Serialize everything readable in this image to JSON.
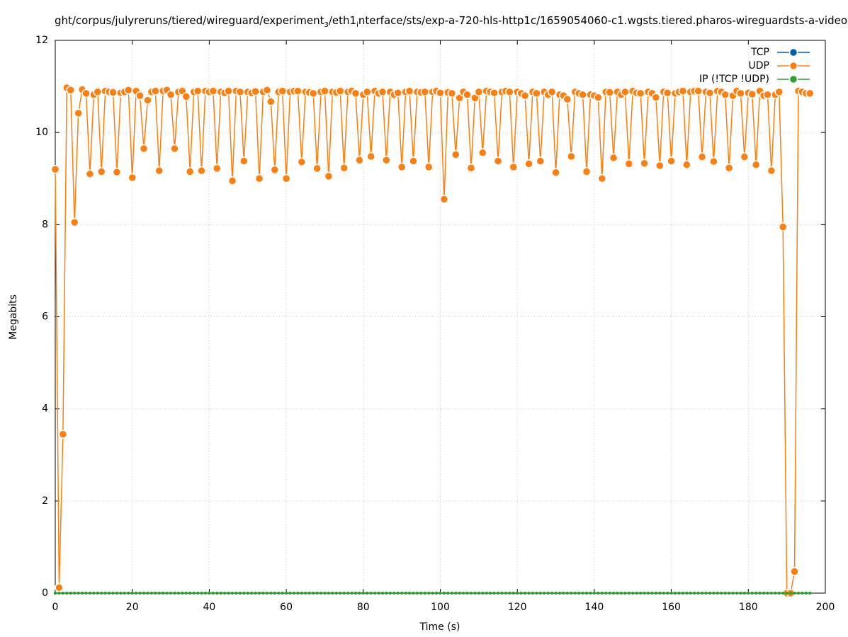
{
  "chart_data": {
    "type": "line",
    "title": [
      "ght/corpus/julyreruns/tiered/wireguard/experiment",
      "3",
      "/eth1",
      "i",
      "nterface/sts/exp-a-720-hls-http1c/1659054060-c1.wgsts.tiered.pharos-wireguardsts-a-video"
    ],
    "xlabel": "Time (s)",
    "ylabel": "Megabits",
    "xlim": [
      0,
      200
    ],
    "xticks": [
      0,
      20,
      40,
      60,
      80,
      100,
      120,
      140,
      160,
      180,
      200
    ],
    "ylim": [
      0,
      12
    ],
    "yticks": [
      0,
      2,
      4,
      6,
      8,
      10,
      12
    ],
    "grid": true,
    "legend": "top-right",
    "x": [
      0,
      1,
      2,
      3,
      4,
      5,
      6,
      7,
      8,
      9,
      10,
      11,
      12,
      13,
      14,
      15,
      16,
      17,
      18,
      19,
      20,
      21,
      22,
      23,
      24,
      25,
      26,
      27,
      28,
      29,
      30,
      31,
      32,
      33,
      34,
      35,
      36,
      37,
      38,
      39,
      40,
      41,
      42,
      43,
      44,
      45,
      46,
      47,
      48,
      49,
      50,
      51,
      52,
      53,
      54,
      55,
      56,
      57,
      58,
      59,
      60,
      61,
      62,
      63,
      64,
      65,
      66,
      67,
      68,
      69,
      70,
      71,
      72,
      73,
      74,
      75,
      76,
      77,
      78,
      79,
      80,
      81,
      82,
      83,
      84,
      85,
      86,
      87,
      88,
      89,
      90,
      91,
      92,
      93,
      94,
      95,
      96,
      97,
      98,
      99,
      100,
      101,
      102,
      103,
      104,
      105,
      106,
      107,
      108,
      109,
      110,
      111,
      112,
      113,
      114,
      115,
      116,
      117,
      118,
      119,
      120,
      121,
      122,
      123,
      124,
      125,
      126,
      127,
      128,
      129,
      130,
      131,
      132,
      133,
      134,
      135,
      136,
      137,
      138,
      139,
      140,
      141,
      142,
      143,
      144,
      145,
      146,
      147,
      148,
      149,
      150,
      151,
      152,
      153,
      154,
      155,
      156,
      157,
      158,
      159,
      160,
      161,
      162,
      163,
      164,
      165,
      166,
      167,
      168,
      169,
      170,
      171,
      172,
      173,
      174,
      175,
      176,
      177,
      178,
      179,
      180,
      181,
      182,
      183,
      184,
      185,
      186,
      187,
      188,
      189,
      190,
      191,
      192,
      193,
      194,
      195,
      196
    ],
    "series": [
      {
        "name": "TCP",
        "color": "#0060ad",
        "values": [
          0,
          0,
          0,
          0,
          0,
          0,
          0,
          0,
          0,
          0,
          0,
          0,
          0,
          0,
          0,
          0,
          0,
          0,
          0,
          0,
          0,
          0,
          0,
          0,
          0,
          0,
          0,
          0,
          0,
          0,
          0,
          0,
          0,
          0,
          0,
          0,
          0,
          0,
          0,
          0,
          0,
          0,
          0,
          0,
          0,
          0,
          0,
          0,
          0,
          0,
          0,
          0,
          0,
          0,
          0,
          0,
          0,
          0,
          0,
          0,
          0,
          0,
          0,
          0,
          0,
          0,
          0,
          0,
          0,
          0,
          0,
          0,
          0,
          0,
          0,
          0,
          0,
          0,
          0,
          0,
          0,
          0,
          0,
          0,
          0,
          0,
          0,
          0,
          0,
          0,
          0,
          0,
          0,
          0,
          0,
          0,
          0,
          0,
          0,
          0,
          0,
          0,
          0,
          0,
          0,
          0,
          0,
          0,
          0,
          0,
          0,
          0,
          0,
          0,
          0,
          0,
          0,
          0,
          0,
          0,
          0,
          0,
          0,
          0,
          0,
          0,
          0,
          0,
          0,
          0,
          0,
          0,
          0,
          0,
          0,
          0,
          0,
          0,
          0,
          0,
          0,
          0,
          0,
          0,
          0,
          0,
          0,
          0,
          0,
          0,
          0,
          0,
          0,
          0,
          0,
          0,
          0,
          0,
          0,
          0,
          0,
          0,
          0,
          0,
          0,
          0,
          0,
          0,
          0,
          0,
          0,
          0,
          0,
          0,
          0,
          0,
          0,
          0,
          0,
          0,
          0,
          0,
          0,
          0,
          0,
          0,
          0,
          0,
          0,
          0,
          0,
          0,
          0,
          0,
          0,
          0,
          0
        ]
      },
      {
        "name": "UDP",
        "color": "#ff7f0e",
        "values": [
          9.2,
          0.12,
          3.45,
          10.97,
          10.92,
          8.05,
          10.42,
          10.93,
          10.85,
          9.1,
          10.82,
          10.88,
          9.15,
          10.9,
          10.88,
          10.87,
          9.14,
          10.86,
          10.88,
          10.92,
          9.02,
          10.9,
          10.8,
          9.65,
          10.7,
          10.88,
          10.9,
          9.17,
          10.9,
          10.92,
          10.82,
          9.65,
          10.88,
          10.9,
          10.78,
          9.15,
          10.88,
          10.9,
          9.17,
          10.9,
          10.88,
          10.9,
          9.22,
          10.88,
          10.86,
          10.9,
          8.95,
          10.9,
          10.88,
          9.38,
          10.88,
          10.86,
          10.89,
          9.0,
          10.88,
          10.92,
          10.67,
          9.19,
          10.88,
          10.9,
          9.0,
          10.88,
          10.9,
          10.9,
          9.36,
          10.88,
          10.87,
          10.85,
          9.22,
          10.88,
          10.9,
          9.05,
          10.88,
          10.87,
          10.9,
          9.23,
          10.88,
          10.9,
          10.85,
          9.4,
          10.82,
          10.88,
          9.48,
          10.9,
          10.85,
          10.88,
          9.4,
          10.88,
          10.82,
          10.86,
          9.25,
          10.88,
          10.9,
          9.38,
          10.88,
          10.87,
          10.88,
          9.25,
          10.88,
          10.9,
          10.86,
          8.55,
          10.87,
          10.85,
          9.52,
          10.75,
          10.88,
          10.82,
          9.23,
          10.75,
          10.88,
          9.56,
          10.9,
          10.88,
          10.86,
          9.38,
          10.88,
          10.9,
          10.88,
          9.25,
          10.88,
          10.85,
          10.8,
          9.32,
          10.88,
          10.85,
          9.38,
          10.88,
          10.82,
          10.88,
          9.13,
          10.82,
          10.8,
          10.72,
          9.48,
          10.88,
          10.85,
          10.82,
          9.15,
          10.82,
          10.8,
          10.76,
          9.0,
          10.88,
          10.87,
          9.45,
          10.88,
          10.82,
          10.88,
          9.32,
          10.9,
          10.86,
          10.85,
          9.33,
          10.88,
          10.85,
          10.76,
          9.28,
          10.88,
          10.86,
          9.38,
          10.85,
          10.88,
          10.9,
          9.3,
          10.88,
          10.9,
          10.9,
          9.47,
          10.88,
          10.86,
          9.37,
          10.9,
          10.88,
          10.82,
          9.23,
          10.8,
          10.9,
          10.85,
          9.47,
          10.86,
          10.83,
          9.3,
          10.9,
          10.8,
          10.82,
          9.17,
          10.82,
          10.88,
          7.95,
          0,
          0,
          0.47,
          10.9,
          10.88,
          10.85,
          10.85
        ]
      },
      {
        "name": "IP (!TCP  !UDP)",
        "color": "#2ca02c",
        "values": [
          0,
          0,
          0,
          0,
          0,
          0,
          0,
          0,
          0,
          0,
          0,
          0,
          0,
          0,
          0,
          0,
          0,
          0,
          0,
          0,
          0,
          0,
          0,
          0,
          0,
          0,
          0,
          0,
          0,
          0,
          0,
          0,
          0,
          0,
          0,
          0,
          0,
          0,
          0,
          0,
          0,
          0,
          0,
          0,
          0,
          0,
          0,
          0,
          0,
          0,
          0,
          0,
          0,
          0,
          0,
          0,
          0,
          0,
          0,
          0,
          0,
          0,
          0,
          0,
          0,
          0,
          0,
          0,
          0,
          0,
          0,
          0,
          0,
          0,
          0,
          0,
          0,
          0,
          0,
          0,
          0,
          0,
          0,
          0,
          0,
          0,
          0,
          0,
          0,
          0,
          0,
          0,
          0,
          0,
          0,
          0,
          0,
          0,
          0,
          0,
          0,
          0,
          0,
          0,
          0,
          0,
          0,
          0,
          0,
          0,
          0,
          0,
          0,
          0,
          0,
          0,
          0,
          0,
          0,
          0,
          0,
          0,
          0,
          0,
          0,
          0,
          0,
          0,
          0,
          0,
          0,
          0,
          0,
          0,
          0,
          0,
          0,
          0,
          0,
          0,
          0,
          0,
          0,
          0,
          0,
          0,
          0,
          0,
          0,
          0,
          0,
          0,
          0,
          0,
          0,
          0,
          0,
          0,
          0,
          0,
          0,
          0,
          0,
          0,
          0,
          0,
          0,
          0,
          0,
          0,
          0,
          0,
          0,
          0,
          0,
          0,
          0,
          0,
          0,
          0,
          0,
          0,
          0,
          0,
          0,
          0,
          0,
          0,
          0,
          0,
          0,
          0,
          0,
          0,
          0,
          0,
          0
        ]
      }
    ]
  }
}
